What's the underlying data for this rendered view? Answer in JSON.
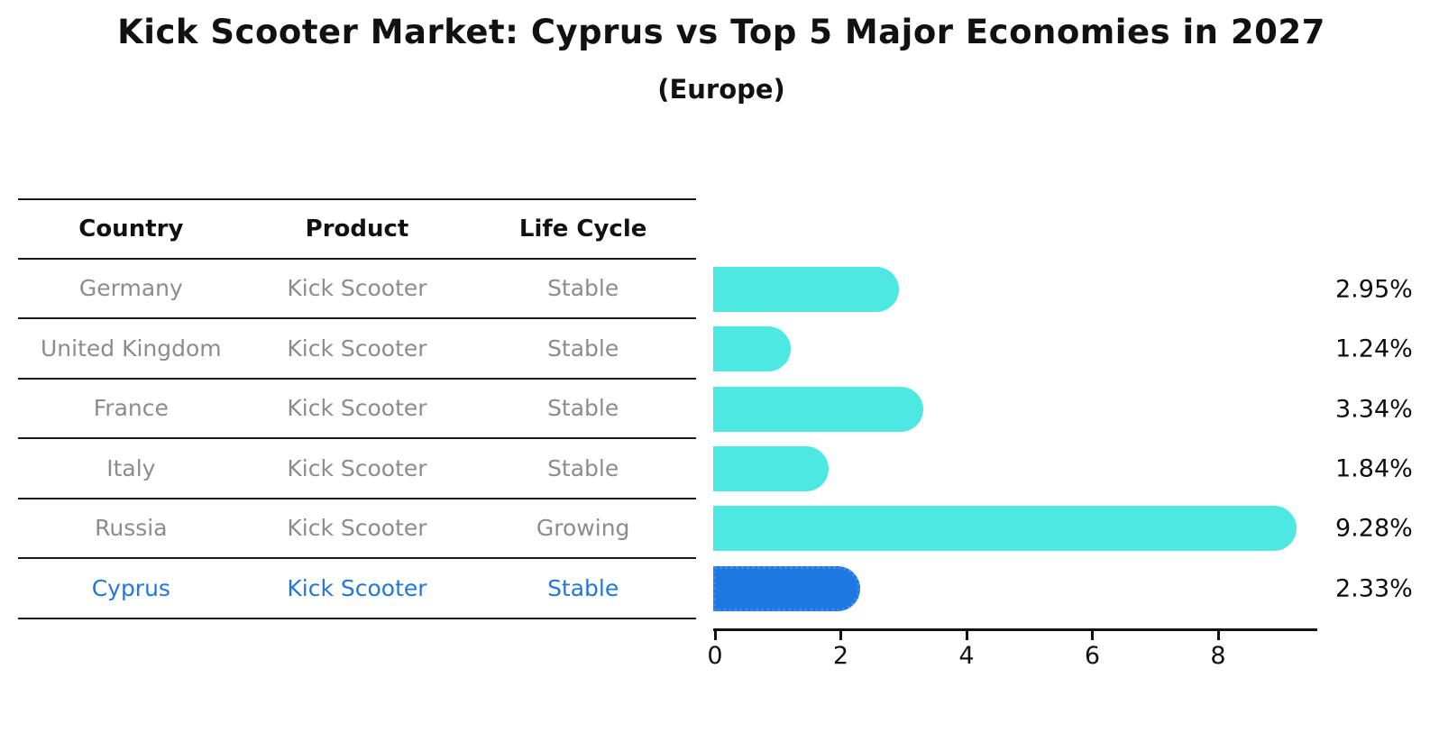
{
  "title": "Kick Scooter Market: Cyprus vs Top 5 Major Economies in 2027",
  "subtitle": "(Europe)",
  "table": {
    "headers": [
      "Country",
      "Product",
      "Life Cycle"
    ],
    "rows": [
      {
        "country": "Germany",
        "product": "Kick Scooter",
        "life_cycle": "Stable",
        "share": "2.95%",
        "highlighted": false
      },
      {
        "country": "United Kingdom",
        "product": "Kick Scooter",
        "life_cycle": "Stable",
        "share": "1.24%",
        "highlighted": false
      },
      {
        "country": "France",
        "product": "Kick Scooter",
        "life_cycle": "Stable",
        "share": "3.34%",
        "highlighted": false
      },
      {
        "country": "Italy",
        "product": "Kick Scooter",
        "life_cycle": "Stable",
        "share": "1.84%",
        "highlighted": false
      },
      {
        "country": "Russia",
        "product": "Kick Scooter",
        "life_cycle": "Growing",
        "share": "9.28%",
        "highlighted": false
      },
      {
        "country": "Cyprus",
        "product": "Kick Scooter",
        "life_cycle": "Stable",
        "share": "2.33%",
        "highlighted": true
      }
    ]
  },
  "chart_data": {
    "type": "bar",
    "orientation": "horizontal",
    "title": "Kick Scooter Market: Cyprus vs Top 5 Major Economies in 2027",
    "subtitle": "(Europe)",
    "categories": [
      "Germany",
      "United Kingdom",
      "France",
      "Italy",
      "Russia",
      "Cyprus"
    ],
    "values": [
      2.95,
      1.24,
      3.34,
      1.84,
      9.28,
      2.33
    ],
    "value_labels": [
      "2.95%",
      "1.24%",
      "3.34%",
      "1.84%",
      "9.28%",
      "2.33%"
    ],
    "x_ticks": [
      0,
      2,
      4,
      6,
      8
    ],
    "xlim": [
      0,
      9.6
    ],
    "xlabel": "",
    "ylabel": "",
    "grid": false,
    "legend": false,
    "highlight_index": 5,
    "bar_color": "#4de8e2",
    "highlight_bar_color": "#1e78e2"
  },
  "colors": {
    "bar_cyan": "#4de8e2",
    "bar_blue": "#1e78e2",
    "highlight_text": "#2277db",
    "row_text": "#8c8c8c",
    "header_text": "#111111",
    "line": "#1a1a1a"
  }
}
